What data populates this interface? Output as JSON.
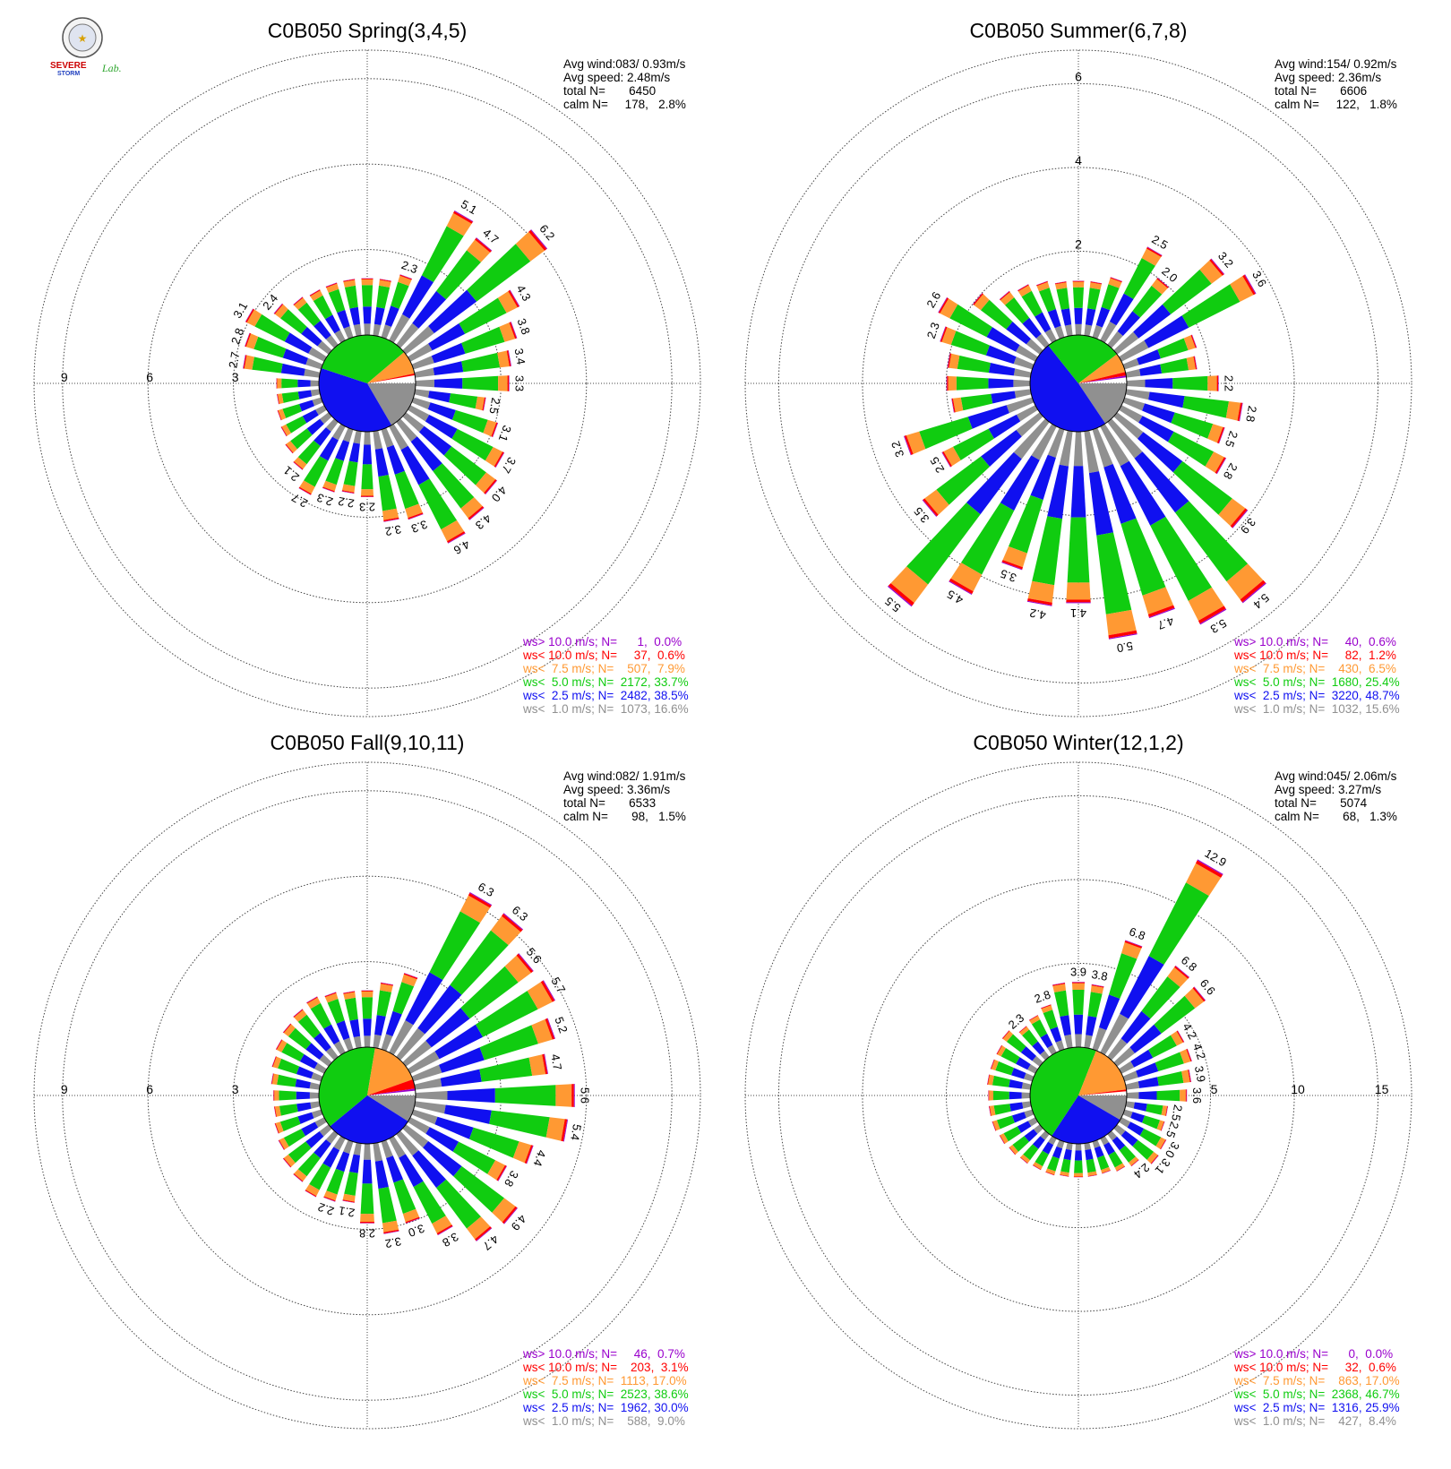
{
  "logo": {
    "primary": "SEVERE",
    "secondary": "STORM",
    "suffix": "Lab."
  },
  "legend_colors": [
    "#909090",
    "#1010f0",
    "#10cc10",
    "#ff9933",
    "#ff0000",
    "#9900cc"
  ],
  "charts": [
    {
      "title": "C0B050 Spring(3,4,5)",
      "stats": [
        "Avg wind:083/ 0.93m/s",
        "Avg speed: 2.48m/s",
        "total N=       6450",
        "calm N=     178,   2.8%"
      ],
      "legend": [
        "ws> 10.0 m/s; N=      1,  0.0%",
        "ws< 10.0 m/s; N=     37,  0.6%",
        "ws<  7.5 m/s; N=    507,  7.9%",
        "ws<  5.0 m/s; N=  2172, 33.7%",
        "ws<  2.5 m/s; N=  2482, 38.5%",
        "ws<  1.0 m/s; N=  1073, 16.6%"
      ],
      "ticks": [
        {
          "value": 3,
          "label": "3"
        },
        {
          "value": 6,
          "label": "6"
        },
        {
          "value": 9,
          "label": "9"
        }
      ],
      "tick_side": "west"
    },
    {
      "title": "C0B050 Summer(6,7,8)",
      "stats": [
        "Avg wind:154/ 0.92m/s",
        "Avg speed: 2.36m/s",
        "total N=       6606",
        "calm N=     122,   1.8%"
      ],
      "legend": [
        "ws> 10.0 m/s; N=     40,  0.6%",
        "ws< 10.0 m/s; N=     82,  1.2%",
        "ws<  7.5 m/s; N=    430,  6.5%",
        "ws<  5.0 m/s; N=  1680, 25.4%",
        "ws<  2.5 m/s; N=  3220, 48.7%",
        "ws<  1.0 m/s; N=  1032, 15.6%"
      ],
      "ticks": [
        {
          "value": 2,
          "label": "2"
        },
        {
          "value": 4,
          "label": "4"
        },
        {
          "value": 6,
          "label": "6"
        }
      ],
      "tick_side": "north"
    },
    {
      "title": "C0B050 Fall(9,10,11)",
      "stats": [
        "Avg wind:082/ 1.91m/s",
        "Avg speed: 3.36m/s",
        "total N=       6533",
        "calm N=       98,   1.5%"
      ],
      "legend": [
        "ws> 10.0 m/s; N=     46,  0.7%",
        "ws< 10.0 m/s; N=    203,  3.1%",
        "ws<  7.5 m/s; N=  1113, 17.0%",
        "ws<  5.0 m/s; N=  2523, 38.6%",
        "ws<  2.5 m/s; N=  1962, 30.0%",
        "ws<  1.0 m/s; N=    588,  9.0%"
      ],
      "ticks": [
        {
          "value": 3,
          "label": "3"
        },
        {
          "value": 6,
          "label": "6"
        },
        {
          "value": 9,
          "label": "9"
        }
      ],
      "tick_side": "west"
    },
    {
      "title": "C0B050 Winter(12,1,2)",
      "stats": [
        "Avg wind:045/ 2.06m/s",
        "Avg speed: 3.27m/s",
        "total N=       5074",
        "calm N=       68,   1.3%"
      ],
      "legend": [
        "ws> 10.0 m/s; N=      0,  0.0%",
        "ws< 10.0 m/s; N=     32,  0.6%",
        "ws<  7.5 m/s; N=    863, 17.0%",
        "ws<  5.0 m/s; N=  2368, 46.7%",
        "ws<  2.5 m/s; N=  1316, 25.9%",
        "ws<  1.0 m/s; N=    427,  8.4%"
      ],
      "ticks": [
        {
          "value": 5,
          "label": "5"
        },
        {
          "value": 10,
          "label": "10"
        },
        {
          "value": 15,
          "label": "15"
        }
      ],
      "tick_side": "east"
    }
  ],
  "chart_data": [
    {
      "type": "wind-rose",
      "title": "C0B050 Spring(3,4,5)",
      "rmax": 10,
      "speed_bins": [
        "ws< 1.0 m/s",
        "ws< 2.5 m/s",
        "ws< 5.0 m/s",
        "ws< 7.5 m/s",
        "ws< 10.0 m/s",
        "ws> 10.0 m/s"
      ],
      "pie_percent": [
        16.6,
        38.5,
        33.7,
        7.9,
        0.6,
        0.0
      ],
      "directions_deg": [
        0,
        10,
        20,
        30,
        40,
        50,
        60,
        70,
        80,
        90,
        100,
        110,
        120,
        130,
        140,
        150,
        160,
        170,
        180,
        190,
        200,
        210,
        220,
        230,
        240,
        250,
        260,
        270,
        280,
        290,
        300,
        310,
        320,
        330,
        340,
        350
      ],
      "totals": [
        2.0,
        2.0,
        2.3,
        5.1,
        4.7,
        6.2,
        4.3,
        3.8,
        3.4,
        3.3,
        2.5,
        3.1,
        3.7,
        4.0,
        4.3,
        4.6,
        3.3,
        3.2,
        2.3,
        2.2,
        2.3,
        2.7,
        2.1,
        1.9,
        1.7,
        1.6,
        1.5,
        1.5,
        2.7,
        2.8,
        3.1,
        2.4,
        2.1,
        2.0,
        2.0,
        2.0
      ],
      "labels": [
        "",
        "",
        "2.3",
        "5.1",
        "4.7",
        "6.2",
        "4.3",
        "3.8",
        "3.4",
        "3.3",
        "2.5",
        "3.1",
        "3.7",
        "4.0",
        "4.3",
        "4.6",
        "3.3",
        "3.2",
        "2.3",
        "2.2",
        "2.3",
        "2.7",
        "2.1",
        "",
        "",
        "",
        "",
        "",
        "2.7",
        "2.8",
        "3.1",
        "2.4",
        "",
        "",
        "",
        ""
      ],
      "ticks": [
        3,
        6,
        9
      ]
    },
    {
      "type": "wind-rose",
      "title": "C0B050 Summer(6,7,8)",
      "rmax": 6.8,
      "speed_bins": [
        "ws< 1.0 m/s",
        "ws< 2.5 m/s",
        "ws< 5.0 m/s",
        "ws< 7.5 m/s",
        "ws< 10.0 m/s",
        "ws> 10.0 m/s"
      ],
      "pie_percent": [
        15.6,
        48.7,
        25.4,
        6.5,
        1.2,
        0.6
      ],
      "directions_deg": [
        0,
        10,
        20,
        30,
        40,
        50,
        60,
        70,
        80,
        90,
        100,
        110,
        120,
        130,
        140,
        150,
        160,
        170,
        180,
        190,
        200,
        210,
        220,
        230,
        240,
        250,
        260,
        270,
        280,
        290,
        300,
        310,
        320,
        330,
        340,
        350
      ],
      "totals": [
        1.3,
        1.3,
        1.5,
        2.5,
        2.0,
        3.2,
        3.6,
        1.8,
        1.7,
        2.2,
        2.8,
        2.5,
        2.8,
        3.9,
        5.4,
        5.3,
        4.7,
        5.0,
        4.1,
        4.2,
        3.5,
        4.5,
        5.5,
        3.5,
        2.5,
        3.2,
        1.9,
        2.0,
        2.0,
        2.3,
        2.6,
        2.0,
        1.6,
        1.5,
        1.4,
        1.3
      ],
      "labels": [
        "",
        "",
        "",
        "2.5",
        "2.0",
        "3.2",
        "3.6",
        "",
        "",
        "2.2",
        "2.8",
        "2.5",
        "2.8",
        "3.9",
        "5.4",
        "5.3",
        "4.7",
        "5.0",
        "4.1",
        "4.2",
        "3.5",
        "4.5",
        "5.5",
        "3.5",
        "2.5",
        "3.2",
        "",
        "",
        "",
        "2.3",
        "2.6",
        "",
        "",
        "",
        "",
        ""
      ],
      "ticks": [
        2,
        4,
        6
      ]
    },
    {
      "type": "wind-rose",
      "title": "C0B050 Fall(9,10,11)",
      "rmax": 10,
      "speed_bins": [
        "ws< 1.0 m/s",
        "ws< 2.5 m/s",
        "ws< 5.0 m/s",
        "ws< 7.5 m/s",
        "ws< 10.0 m/s",
        "ws> 10.0 m/s"
      ],
      "pie_percent": [
        9.0,
        30.0,
        38.6,
        17.0,
        3.1,
        0.7
      ],
      "directions_deg": [
        0,
        10,
        20,
        30,
        40,
        50,
        60,
        70,
        80,
        90,
        100,
        110,
        120,
        130,
        140,
        150,
        160,
        170,
        180,
        190,
        200,
        210,
        220,
        230,
        240,
        250,
        260,
        270,
        280,
        290,
        300,
        310,
        320,
        330,
        340,
        350
      ],
      "totals": [
        2.0,
        2.3,
        2.8,
        6.3,
        6.3,
        5.6,
        5.7,
        5.2,
        4.7,
        5.6,
        5.4,
        4.4,
        3.8,
        4.9,
        4.7,
        3.8,
        3.0,
        3.2,
        2.8,
        2.1,
        2.2,
        2.3,
        2.1,
        2.0,
        1.8,
        1.7,
        1.6,
        1.6,
        1.7,
        1.8,
        1.9,
        2.0,
        2.1,
        2.2,
        2.1,
        2.0
      ],
      "labels": [
        "",
        "",
        "",
        "6.3",
        "6.3",
        "5.6",
        "5.7",
        "5.2",
        "4.7",
        "5.6",
        "5.4",
        "4.4",
        "3.8",
        "4.9",
        "4.7",
        "3.8",
        "3.0",
        "3.2",
        "2.8",
        "2.1",
        "2.2",
        "",
        "",
        "",
        "",
        "",
        "",
        "",
        "",
        "",
        "",
        "",
        "",
        "",
        "",
        ""
      ],
      "ticks": [
        3,
        6,
        9
      ]
    },
    {
      "type": "wind-rose",
      "title": "C0B050 Winter(12,1,2)",
      "rmax": 17,
      "speed_bins": [
        "ws< 1.0 m/s",
        "ws< 2.5 m/s",
        "ws< 5.0 m/s",
        "ws< 7.5 m/s",
        "ws< 10.0 m/s",
        "ws> 10.0 m/s"
      ],
      "pie_percent": [
        8.4,
        25.9,
        46.7,
        17.0,
        0.6,
        0.0
      ],
      "directions_deg": [
        0,
        10,
        20,
        30,
        40,
        50,
        60,
        70,
        80,
        90,
        100,
        110,
        120,
        130,
        140,
        150,
        160,
        170,
        180,
        190,
        200,
        210,
        220,
        230,
        240,
        250,
        260,
        270,
        280,
        290,
        300,
        310,
        320,
        330,
        340,
        350
      ],
      "totals": [
        3.9,
        3.8,
        6.8,
        12.9,
        6.8,
        6.6,
        4.2,
        4.2,
        3.9,
        3.6,
        2.5,
        2.5,
        3.0,
        3.1,
        2.4,
        2.2,
        2.0,
        2.0,
        2.0,
        2.0,
        2.1,
        2.1,
        2.2,
        2.3,
        2.4,
        2.5,
        2.5,
        2.5,
        2.6,
        2.6,
        2.6,
        2.8,
        2.3,
        2.5,
        2.8,
        3.9
      ],
      "labels": [
        "3.9",
        "3.8",
        "6.8",
        "12.9",
        "6.8",
        "6.6",
        "4.2",
        "4.2",
        "3.9",
        "3.6",
        "2.5",
        "2.5",
        "3.0",
        "3.1",
        "2.4",
        "",
        "",
        "",
        "",
        "",
        "",
        "",
        "",
        "",
        "",
        "",
        "",
        "",
        "",
        "",
        "",
        "",
        "2.3",
        "",
        "2.8",
        ""
      ],
      "ticks": [
        5,
        10,
        15
      ]
    }
  ]
}
